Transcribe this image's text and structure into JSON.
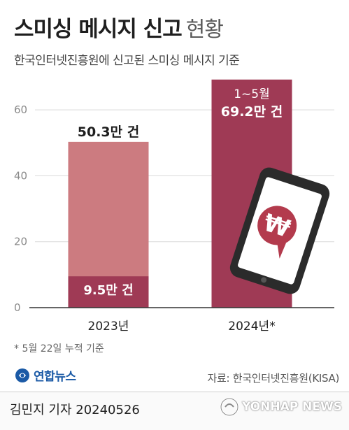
{
  "header": {
    "title_main": "스미싱 메시지 신고",
    "title_sub": "현황",
    "subtitle": "한국인터넷진흥원에 신고된 스미싱 메시지 기준"
  },
  "chart_data": {
    "type": "bar",
    "categories": [
      "2023년",
      "2024년*"
    ],
    "ylim": [
      0,
      70
    ],
    "yticks": [
      0,
      20,
      40,
      60
    ],
    "grid": true,
    "bars": [
      {
        "category": "2023년",
        "total": 50.3,
        "highlight": 9.5,
        "label_total": "50.3만 건",
        "label_highlight": "9.5만 건"
      },
      {
        "category": "2024년*",
        "total": 69.2,
        "highlight": 69.2,
        "label_note": "1~5월",
        "label_total": "69.2만 건"
      }
    ],
    "colors": {
      "light": "#cc7b80",
      "dark": "#9f3a55",
      "grid": "#d9d9d9"
    }
  },
  "phone_icon": {
    "symbol": "₩",
    "icon": "phone-won-icon"
  },
  "footnote": "* 5월 22일 누적 기준",
  "logo": {
    "text": "연합뉴스"
  },
  "source": "자료: 한국인터넷진흥원(KISA)",
  "author": "김민지 기자  20240526",
  "watermark": "YONHAP NEWS"
}
